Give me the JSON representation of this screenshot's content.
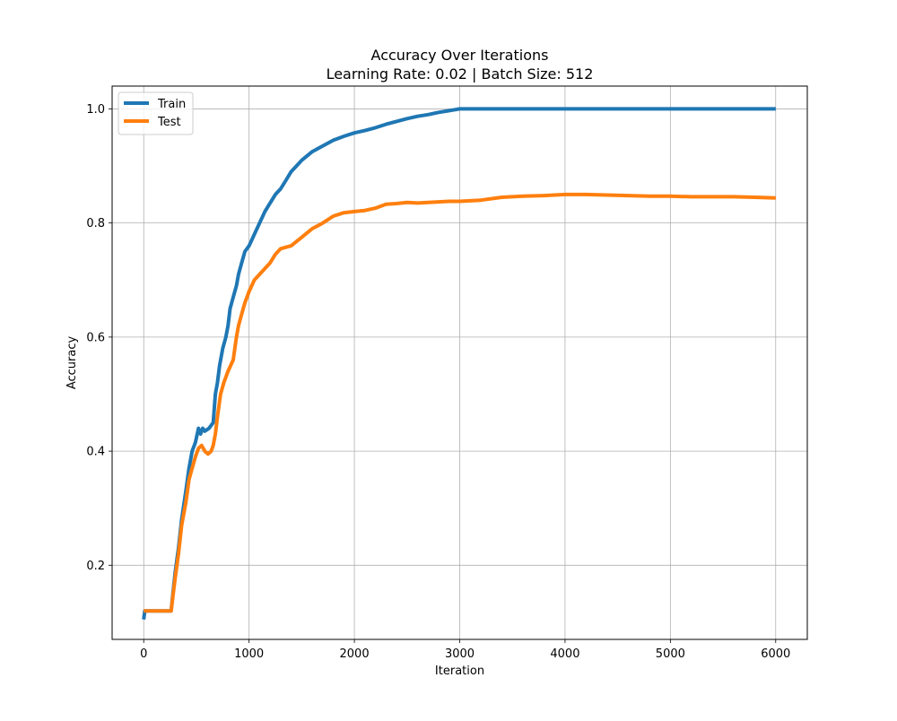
{
  "chart_data": {
    "type": "line",
    "title": "Accuracy Over Iterations",
    "subtitle": "Learning Rate: 0.02 | Batch Size: 512",
    "xlabel": "Iteration",
    "ylabel": "Accuracy",
    "xlim": [
      -300,
      6300
    ],
    "ylim": [
      0.07,
      1.04
    ],
    "xticks": [
      0,
      1000,
      2000,
      3000,
      4000,
      5000,
      6000
    ],
    "yticks": [
      0.2,
      0.4,
      0.6,
      0.8,
      1.0
    ],
    "xtick_labels": [
      "0",
      "1000",
      "2000",
      "3000",
      "4000",
      "5000",
      "6000"
    ],
    "ytick_labels": [
      "0.2",
      "0.4",
      "0.6",
      "0.8",
      "1.0"
    ],
    "grid": true,
    "legend_position": "top-left",
    "series": [
      {
        "name": "Train",
        "color": "#1f77b4",
        "x": [
          0,
          10,
          50,
          100,
          150,
          200,
          260,
          280,
          300,
          330,
          360,
          400,
          430,
          460,
          490,
          520,
          540,
          560,
          580,
          620,
          660,
          680,
          700,
          720,
          750,
          780,
          800,
          820,
          850,
          880,
          900,
          930,
          960,
          1000,
          1050,
          1100,
          1150,
          1200,
          1250,
          1300,
          1350,
          1400,
          1450,
          1500,
          1600,
          1700,
          1800,
          1900,
          2000,
          2100,
          2200,
          2300,
          2400,
          2500,
          2600,
          2700,
          2800,
          2900,
          3000,
          3500,
          4000,
          5000,
          6000
        ],
        "y": [
          0.105,
          0.12,
          0.12,
          0.12,
          0.12,
          0.12,
          0.12,
          0.155,
          0.19,
          0.23,
          0.28,
          0.33,
          0.37,
          0.4,
          0.415,
          0.44,
          0.43,
          0.44,
          0.435,
          0.44,
          0.45,
          0.5,
          0.52,
          0.55,
          0.58,
          0.6,
          0.62,
          0.65,
          0.67,
          0.69,
          0.71,
          0.73,
          0.75,
          0.76,
          0.78,
          0.8,
          0.82,
          0.835,
          0.85,
          0.86,
          0.875,
          0.89,
          0.9,
          0.91,
          0.925,
          0.935,
          0.945,
          0.952,
          0.958,
          0.962,
          0.967,
          0.973,
          0.978,
          0.983,
          0.987,
          0.99,
          0.994,
          0.997,
          1.0,
          1.0,
          1.0,
          1.0,
          1.0
        ]
      },
      {
        "name": "Test",
        "color": "#ff7f0e",
        "x": [
          0,
          10,
          50,
          100,
          150,
          200,
          260,
          280,
          300,
          330,
          360,
          400,
          430,
          460,
          490,
          520,
          550,
          580,
          610,
          640,
          660,
          680,
          700,
          730,
          760,
          800,
          850,
          880,
          900,
          930,
          960,
          1000,
          1050,
          1100,
          1150,
          1200,
          1250,
          1300,
          1400,
          1500,
          1600,
          1700,
          1800,
          1900,
          2000,
          2100,
          2200,
          2300,
          2400,
          2500,
          2600,
          2700,
          2800,
          2900,
          3000,
          3200,
          3400,
          3600,
          3800,
          4000,
          4200,
          4400,
          4600,
          4800,
          5000,
          5200,
          5400,
          5600,
          5800,
          6000
        ],
        "y": [
          0.12,
          0.12,
          0.12,
          0.12,
          0.12,
          0.12,
          0.12,
          0.15,
          0.18,
          0.22,
          0.27,
          0.31,
          0.35,
          0.37,
          0.39,
          0.405,
          0.41,
          0.4,
          0.395,
          0.4,
          0.41,
          0.43,
          0.46,
          0.5,
          0.52,
          0.54,
          0.56,
          0.6,
          0.62,
          0.64,
          0.66,
          0.68,
          0.7,
          0.71,
          0.72,
          0.73,
          0.745,
          0.755,
          0.76,
          0.775,
          0.79,
          0.8,
          0.812,
          0.818,
          0.82,
          0.822,
          0.826,
          0.833,
          0.834,
          0.836,
          0.835,
          0.836,
          0.837,
          0.838,
          0.838,
          0.84,
          0.845,
          0.847,
          0.848,
          0.85,
          0.85,
          0.849,
          0.848,
          0.847,
          0.847,
          0.846,
          0.846,
          0.846,
          0.845,
          0.844
        ]
      }
    ]
  }
}
